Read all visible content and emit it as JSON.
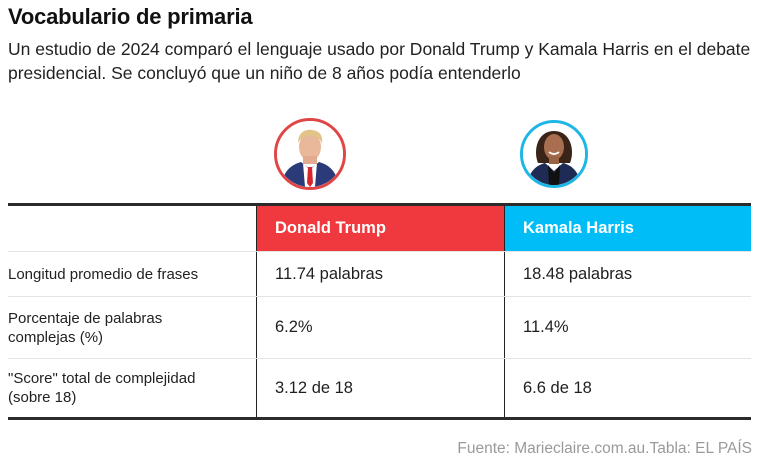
{
  "header": {
    "title": "Vocabulario de primaria",
    "subtitle": "Un estudio de 2024 comparó el lenguaje usado por Donald Trump y Kamala Harris en el debate presidencial. Se concluyó que un niño de 8 años podía entenderlo"
  },
  "candidates": [
    {
      "name": "Donald Trump",
      "color": "#f0393f",
      "ring_color": "#e04646",
      "portrait_icon": "trump-portrait"
    },
    {
      "name": "Kamala Harris",
      "color": "#00bdf7",
      "ring_color": "#1eb6e6",
      "portrait_icon": "harris-portrait"
    }
  ],
  "table": {
    "columns": [
      "",
      "Donald Trump",
      "Kamala Harris"
    ],
    "rows": [
      {
        "label": "Longitud promedio de frases",
        "trump": "11.74 palabras",
        "harris": "18.48 palabras"
      },
      {
        "label": "Porcentaje de palabras complejas (%)",
        "trump": "6.2%",
        "harris": "11.4%"
      },
      {
        "label": "\"Score\" total de complejidad (sobre 18)",
        "trump": "3.12 de 18",
        "harris": "6.6 de 18"
      }
    ]
  },
  "source": "Fuente: Marieclaire.com.au.Tabla: EL PAÍS"
}
